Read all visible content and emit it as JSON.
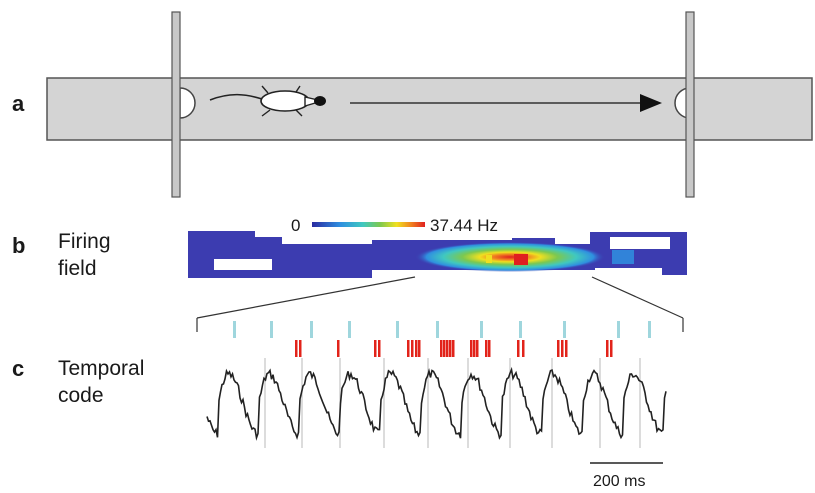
{
  "panels": {
    "a": {
      "label": "a"
    },
    "b": {
      "label": "b",
      "title_line1": "Firing",
      "title_line2": "field"
    },
    "c": {
      "label": "c",
      "title_line1": "Temporal",
      "title_line2": "code"
    }
  },
  "colorbar": {
    "min_label": "0",
    "max_label": "37.44 Hz"
  },
  "scale_bar": {
    "label": "200 ms"
  },
  "colors": {
    "track": "#d4d4d4",
    "field_bg": "#3c3cb0",
    "theta_marker": "#9fd6dd",
    "spike": "#e2231a",
    "lfp": "#222222"
  }
}
